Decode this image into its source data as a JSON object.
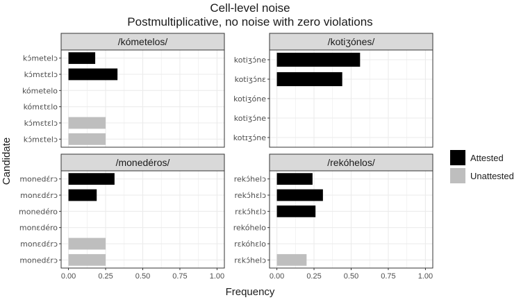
{
  "chart_data": {
    "type": "bar",
    "orientation": "horizontal",
    "title": "Cell-level noise",
    "subtitle": "Postmultiplicative, no noise with zero violations",
    "xlabel": "Frequency",
    "ylabel": "Candidate",
    "xlim": [
      0,
      1
    ],
    "x_ticks": [
      "0.00",
      "0.25",
      "0.50",
      "0.75",
      "1.00"
    ],
    "grid": true,
    "legend": {
      "position": "right",
      "entries": [
        {
          "name": "Attested",
          "color": "#000000"
        },
        {
          "name": "Unattested",
          "color": "#bebebe"
        }
      ]
    },
    "panels": [
      {
        "strip": "/kómetelos/",
        "candidates": [
          "kɔ́metelɔ",
          "kɔ́mɛtɛlɔ",
          "kómetelo",
          "kómɛtɛlo",
          "kɔ́mɛtɛlɔ",
          "kɔ́mɛtelɔ"
        ],
        "values": [
          0.18,
          0.33,
          0.0,
          0.0,
          0.25,
          0.25
        ],
        "status": [
          "Attested",
          "Attested",
          "Attested",
          "Attested",
          "Unattested",
          "Unattested"
        ]
      },
      {
        "strip": "/kotiʒónes/",
        "candidates": [
          "kotiʒɔ́ne",
          "kotiʒɔ́nɛ",
          "kotiʒóne",
          "kotiʒɔ́ne",
          "kotɪʒɔ́ne"
        ],
        "values": [
          0.56,
          0.44,
          0.0,
          0.0,
          0.0
        ],
        "status": [
          "Attested",
          "Attested",
          "Attested",
          "Attested",
          "Attested"
        ]
      },
      {
        "strip": "/monedéros/",
        "candidates": [
          "monedɛ́rɔ",
          "monɛdɛ́rɔ",
          "monedéro",
          "monɛdéro",
          "monɛdɛ́rɔ",
          "monedɛ́rɔ"
        ],
        "values": [
          0.31,
          0.19,
          0.0,
          0.0,
          0.25,
          0.25
        ],
        "status": [
          "Attested",
          "Attested",
          "Attested",
          "Attested",
          "Unattested",
          "Unattested"
        ]
      },
      {
        "strip": "/rekóhelos/",
        "candidates": [
          "rekɔ́helɔ",
          "rekɔ́hɛlɔ",
          "rɛkɔ́hɛlɔ",
          "rekóhelo",
          "rɛkóhɛlo",
          "rɛkɔ́helɔ"
        ],
        "values": [
          0.24,
          0.31,
          0.26,
          0.0,
          0.0,
          0.2
        ],
        "status": [
          "Attested",
          "Attested",
          "Attested",
          "Attested",
          "Attested",
          "Unattested"
        ]
      }
    ]
  }
}
